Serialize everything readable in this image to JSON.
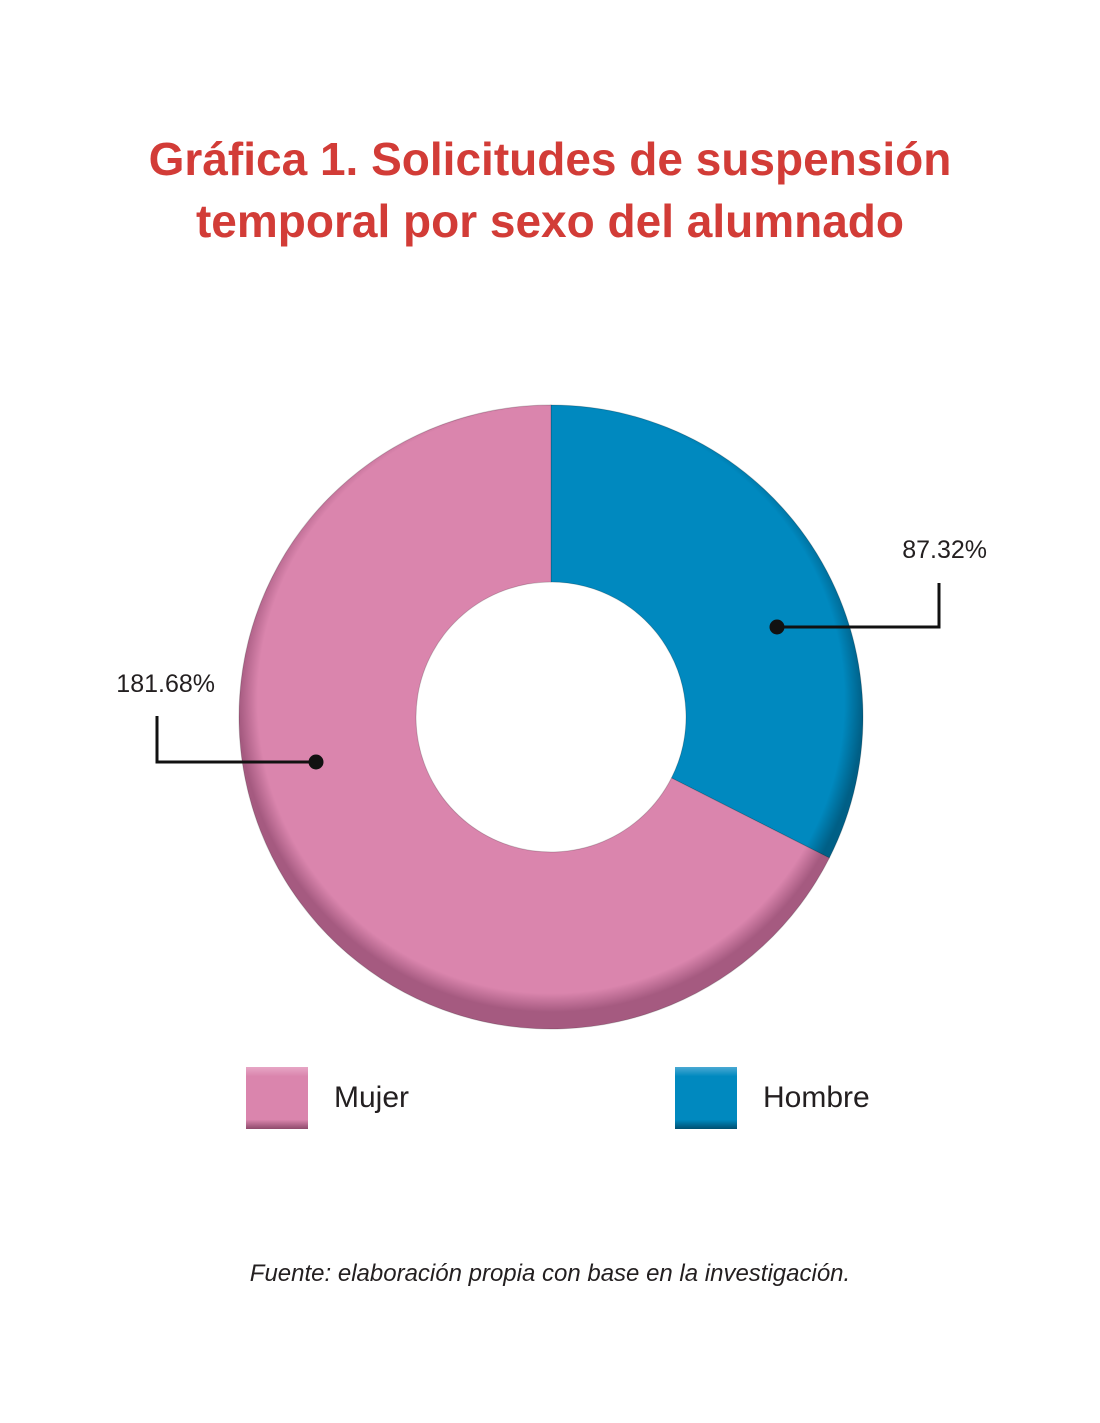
{
  "chart_data": {
    "type": "pie",
    "title_lines": [
      "Gráfica 1. Solicitudes de suspensión",
      "temporal por sexo del alumnado"
    ],
    "slices": [
      {
        "name": "Hombre",
        "label": "87.32%",
        "share": 0.3246,
        "color": "#0089bf"
      },
      {
        "name": "Mujer",
        "label": "181.68%",
        "share": 0.6754,
        "color": "#da85ad"
      }
    ],
    "legend": [
      {
        "name": "Mujer",
        "color": "#da85ad"
      },
      {
        "name": "Hombre",
        "color": "#0089bf"
      }
    ],
    "legend_position": "bottom",
    "donut": true
  },
  "source_note": "Fuente: elaboración propia con base en la investigación."
}
